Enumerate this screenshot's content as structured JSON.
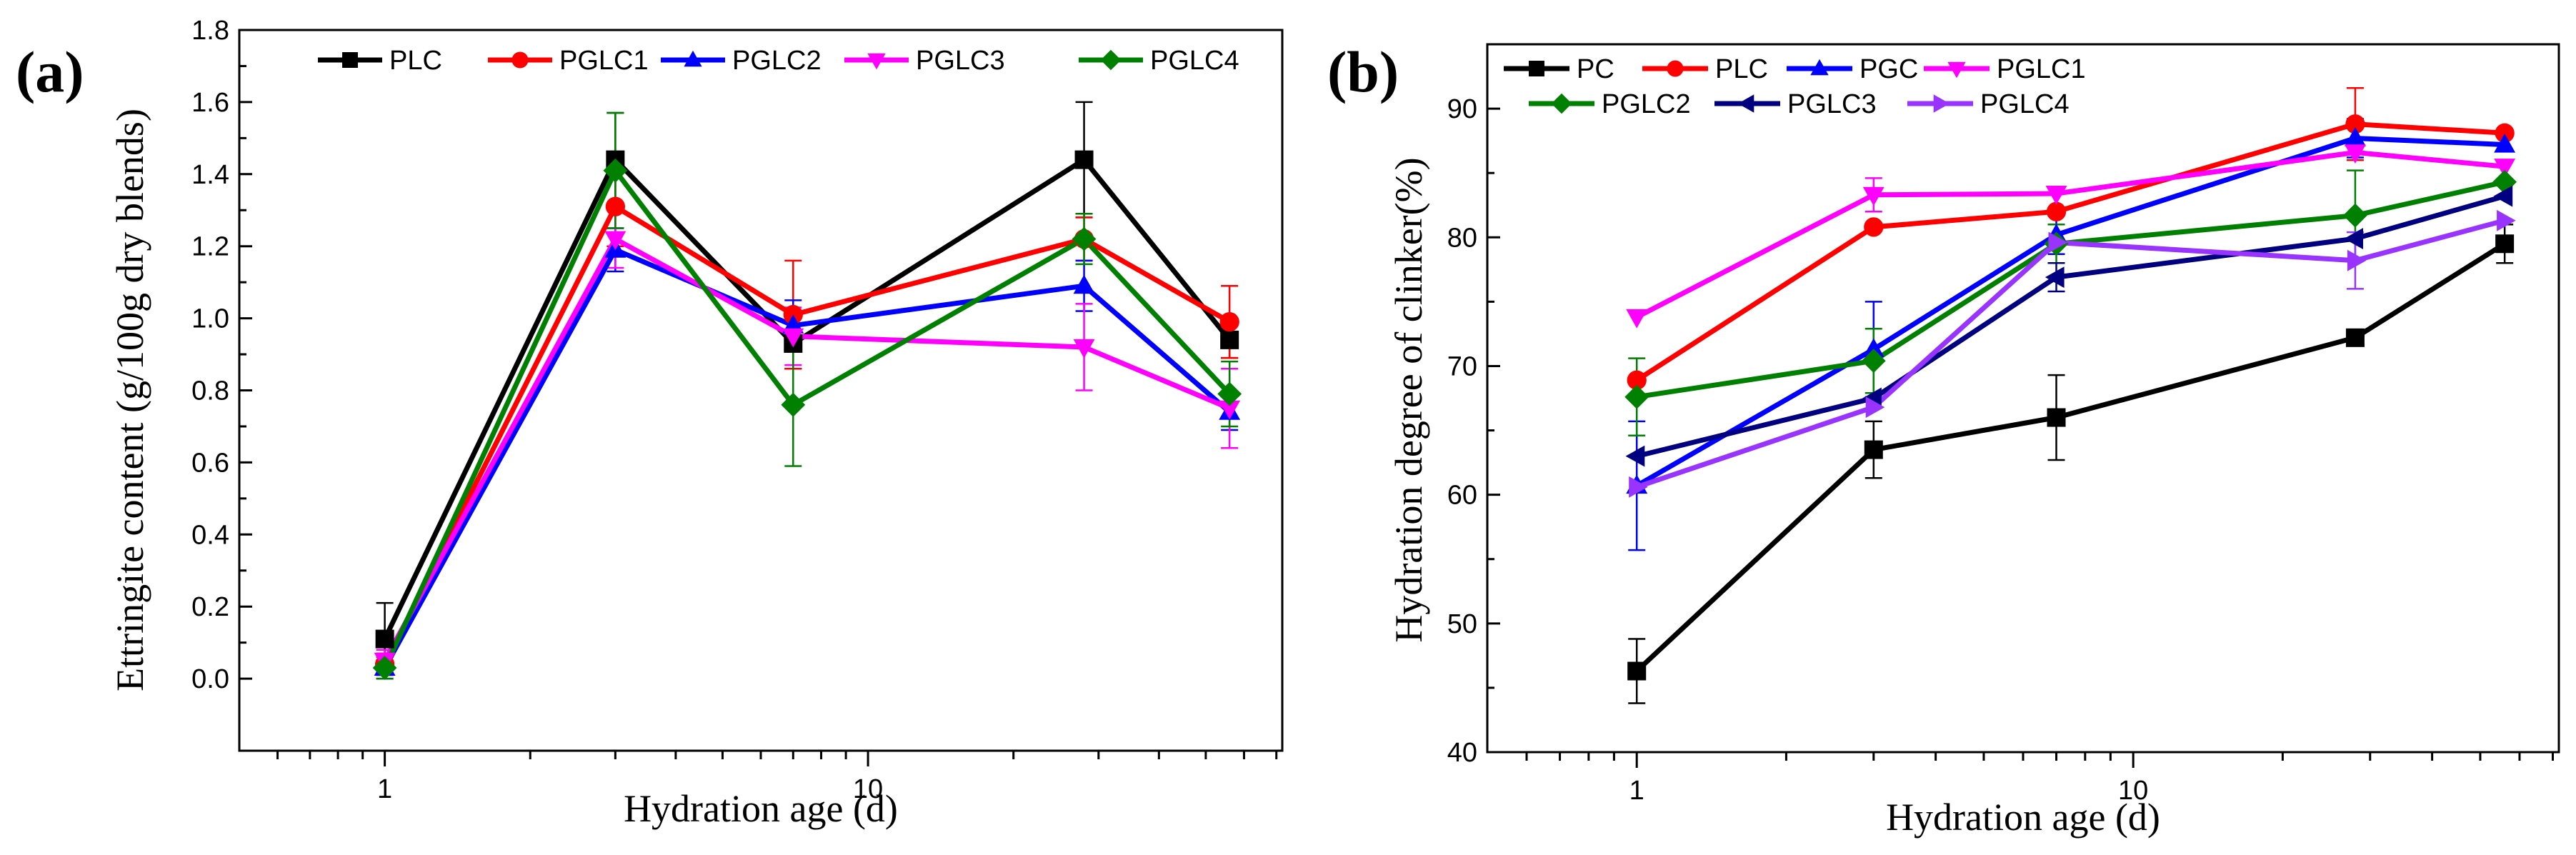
{
  "chart_data": [
    {
      "panel_label": "(a)",
      "type": "line",
      "title": "",
      "xlabel": "Hydration age (d)",
      "ylabel": "Ettringite content (g/100g dry blends)",
      "x_scale": "log",
      "xlim": [
        0.5,
        72
      ],
      "ylim": [
        -0.2,
        1.8
      ],
      "y_ticks": [
        "0.0",
        "0.2",
        "0.4",
        "0.6",
        "0.8",
        "1.0",
        "1.2",
        "1.4",
        "1.6",
        "1.8"
      ],
      "x_tick_labels": [
        "1",
        "10"
      ],
      "grid": false,
      "legend_position": "top",
      "x": [
        1,
        3,
        7,
        28,
        56
      ],
      "series": [
        {
          "name": "PLC",
          "color": "#000000",
          "marker": "square",
          "values": [
            0.11,
            1.44,
            0.93,
            1.44,
            0.94
          ],
          "errors": [
            0.1,
            0.13,
            0.07,
            0.16,
            0.05
          ]
        },
        {
          "name": "PGLC1",
          "color": "#ff0000",
          "marker": "circle",
          "values": [
            0.04,
            1.31,
            1.01,
            1.22,
            0.99
          ],
          "errors": [
            0.03,
            0.11,
            0.15,
            0.06,
            0.1
          ]
        },
        {
          "name": "PGLC2",
          "color": "#0000ff",
          "marker": "triangle-up",
          "values": [
            0.03,
            1.19,
            0.98,
            1.09,
            0.74
          ],
          "errors": [
            0.03,
            0.06,
            0.07,
            0.07,
            0.05
          ]
        },
        {
          "name": "PGLC3",
          "color": "#ff00ff",
          "marker": "triangle-down",
          "values": [
            0.05,
            1.22,
            0.95,
            0.92,
            0.75
          ],
          "errors": [
            0.03,
            0.08,
            0.08,
            0.12,
            0.11
          ]
        },
        {
          "name": "PGLC4",
          "color": "#008000",
          "marker": "diamond",
          "values": [
            0.03,
            1.41,
            0.76,
            1.22,
            0.79
          ],
          "errors": [
            0.03,
            0.16,
            0.17,
            0.07,
            0.09
          ]
        }
      ]
    },
    {
      "panel_label": "(b)",
      "type": "line",
      "title": "",
      "xlabel": "Hydration age (d)",
      "ylabel": "Hydration degree of clinker(%)",
      "x_scale": "log",
      "xlim": [
        0.5,
        72
      ],
      "ylim": [
        40,
        95
      ],
      "y_ticks": [
        "40",
        "50",
        "60",
        "70",
        "80",
        "90"
      ],
      "x_tick_labels": [
        "1",
        "10"
      ],
      "grid": false,
      "legend_position": "top-left",
      "x": [
        1,
        3,
        7,
        28,
        56
      ],
      "series": [
        {
          "name": "PC",
          "color": "#000000",
          "marker": "square",
          "values": [
            46.3,
            63.5,
            66.0,
            72.2,
            79.5
          ],
          "errors": [
            2.5,
            2.2,
            3.3,
            0.0,
            1.5
          ]
        },
        {
          "name": "PLC",
          "color": "#ff0000",
          "marker": "circle",
          "values": [
            68.9,
            80.8,
            82.0,
            88.8,
            88.1
          ],
          "errors": [
            0.0,
            0.0,
            0.0,
            2.8,
            0.0
          ]
        },
        {
          "name": "PGC",
          "color": "#0000ff",
          "marker": "triangle-up",
          "values": [
            60.7,
            71.3,
            80.2,
            87.7,
            87.2
          ],
          "errors": [
            5.0,
            3.7,
            1.5,
            1.5,
            0.0
          ]
        },
        {
          "name": "PGLC1",
          "color": "#ff00ff",
          "marker": "triangle-down",
          "values": [
            73.8,
            83.3,
            83.4,
            86.6,
            85.5
          ],
          "errors": [
            0.0,
            1.3,
            0.0,
            0.0,
            0.0
          ]
        },
        {
          "name": "PGLC2",
          "color": "#008000",
          "marker": "diamond",
          "values": [
            67.6,
            70.4,
            79.5,
            81.7,
            84.3
          ],
          "errors": [
            3.0,
            2.5,
            1.5,
            3.5,
            0.0
          ]
        },
        {
          "name": "PGLC3",
          "color": "#000080",
          "marker": "triangle-left",
          "values": [
            63.0,
            67.5,
            76.9,
            79.9,
            83.2
          ],
          "errors": [
            0.0,
            0.0,
            1.1,
            0.0,
            0.0
          ]
        },
        {
          "name": "PGLC4",
          "color": "#9933ff",
          "marker": "triangle-right",
          "values": [
            60.6,
            66.8,
            79.6,
            78.2,
            81.3
          ],
          "errors": [
            0.0,
            0.0,
            0.0,
            2.2,
            0.0
          ]
        }
      ]
    }
  ]
}
